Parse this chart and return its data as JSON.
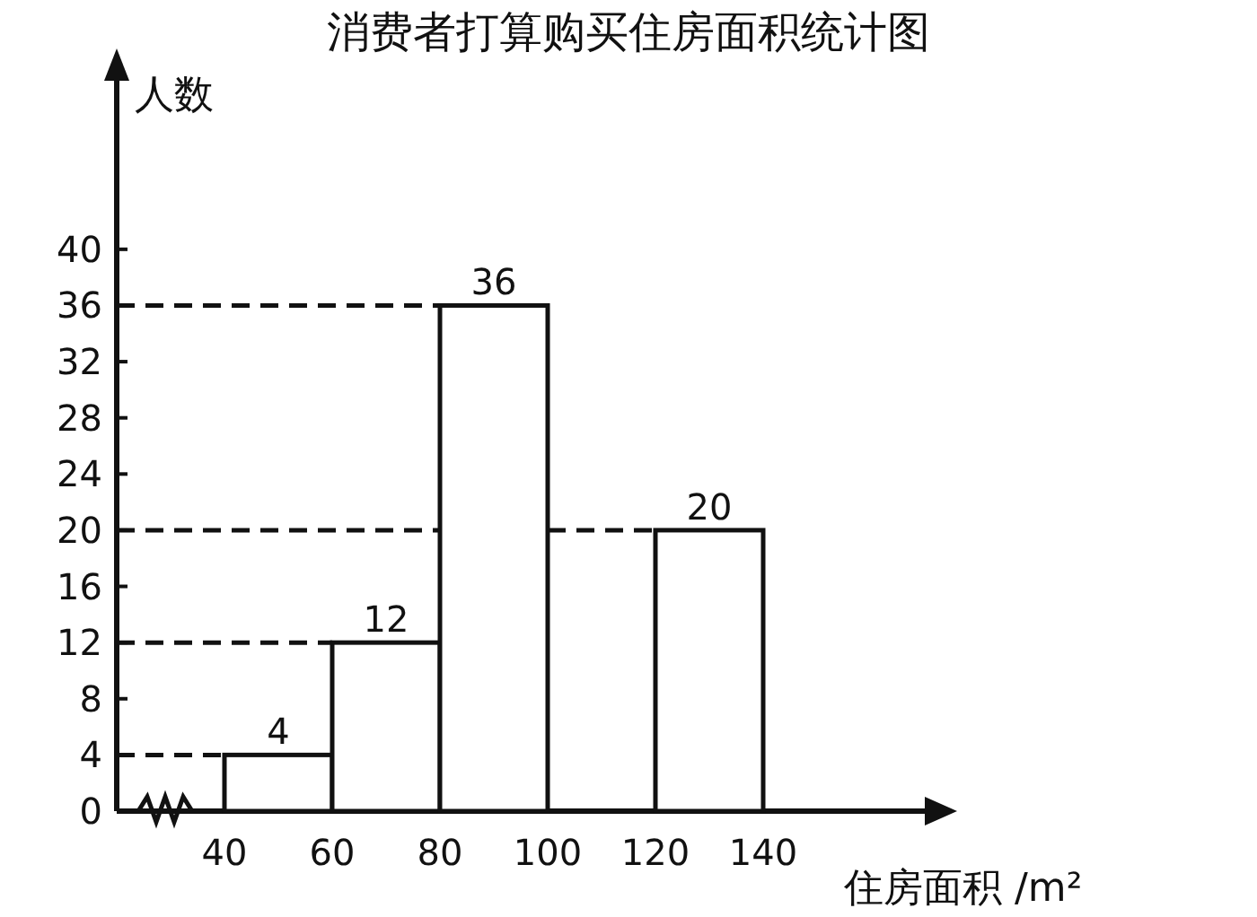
{
  "chart_data": {
    "type": "histogram",
    "title": "消费者打算购买住房面积统计图",
    "xlabel": "住房面积 /m²",
    "ylabel": "人数",
    "bins": [
      40,
      60,
      80,
      100,
      120,
      140
    ],
    "values": [
      4,
      12,
      36,
      null,
      20
    ],
    "color": "#ffffff",
    "xlim": [
      20,
      170
    ],
    "ylim": [
      0,
      52
    ],
    "xticks": [
      40,
      60,
      80,
      100,
      120,
      140
    ],
    "yticks": [
      0,
      4,
      8,
      12,
      16,
      20,
      24,
      28,
      32,
      36,
      40
    ],
    "data_labels": true,
    "ref_lines": [
      {
        "axis": "y",
        "value": 4,
        "line_style": "dashed"
      },
      {
        "axis": "y",
        "value": 12,
        "line_style": "dashed"
      },
      {
        "axis": "y",
        "value": 36,
        "line_style": "dashed"
      },
      {
        "axis": "y",
        "value": 20,
        "line_style": "dashed"
      }
    ]
  }
}
